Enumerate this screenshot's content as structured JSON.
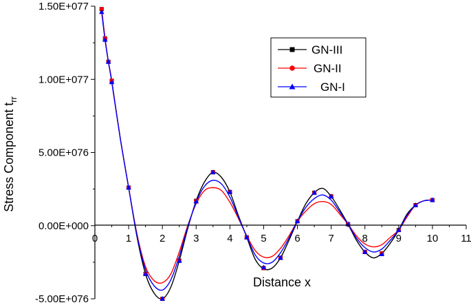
{
  "chart_data": {
    "type": "line",
    "title": "",
    "xlabel": "Distance x",
    "ylabel_main": "Stress Component t",
    "ylabel_sub": "rr",
    "xlim": [
      0,
      11
    ],
    "ylim": [
      -5e+76,
      1.5e+77
    ],
    "x_ticks": [
      0,
      1,
      2,
      3,
      4,
      5,
      6,
      7,
      8,
      9,
      10,
      11
    ],
    "x_tick_labels": [
      "0",
      "1",
      "2",
      "3",
      "4",
      "5",
      "6",
      "7",
      "8",
      "9",
      "10",
      "11"
    ],
    "y_ticks": [
      -5e+76,
      0,
      5e+76,
      1e+77,
      1.5e+77
    ],
    "y_tick_labels": [
      "-5.00E+076",
      "0.00E+000",
      "5.00E+076",
      "1.00E+077",
      "1.50E+077"
    ],
    "legend_position": "top-right",
    "grid": false,
    "series": [
      {
        "name": "GN-III",
        "color": "#000000",
        "marker": "square",
        "x": [
          0.2,
          0.3,
          0.4,
          0.5,
          1.0,
          1.5,
          2.0,
          2.5,
          3.0,
          3.5,
          4.0,
          4.5,
          5.0,
          5.5,
          6.0,
          6.5,
          7.0,
          7.5,
          8.0,
          8.5,
          9.0,
          9.5,
          10.0
        ],
        "values": [
          1.48e+77,
          1.28e+77,
          1.12e+77,
          9.9e+76,
          2.6e+76,
          -3.3e+76,
          -5e+76,
          -2.4e+76,
          1.7e+76,
          3.65e+76,
          2.3e+76,
          -8e+75,
          -2.9e+76,
          -2.2e+76,
          3e+75,
          2.25e+76,
          2e+76,
          1e+75,
          -1.8e+76,
          -1.9e+76,
          -3e+75,
          1.4e+76,
          1.75e+76
        ]
      },
      {
        "name": "GN-II",
        "color": "#ff0000",
        "marker": "circle",
        "x": [
          0.2,
          0.3,
          0.4,
          0.5,
          1.0,
          1.5,
          2.0,
          2.5,
          3.0,
          3.5,
          4.0,
          4.5,
          5.0,
          5.5,
          6.0,
          6.5,
          7.0,
          7.5,
          8.0,
          8.5,
          9.0,
          9.5,
          10.0
        ],
        "values": [
          1.48e+77,
          1.28e+77,
          1.12e+77,
          9.9e+76,
          2.6e+76,
          -3.3e+76,
          -5e+76,
          -2.4e+76,
          1.7e+76,
          3.65e+76,
          2.3e+76,
          -8e+75,
          -2.9e+76,
          -2.2e+76,
          3e+75,
          2.25e+76,
          2e+76,
          1e+75,
          -1.8e+76,
          -1.9e+76,
          -3e+75,
          1.4e+76,
          1.75e+76
        ]
      },
      {
        "name": "GN-I",
        "color": "#0000ff",
        "marker": "triangle",
        "x": [
          0.2,
          0.3,
          0.4,
          0.5,
          1.0,
          1.5,
          2.0,
          2.5,
          3.0,
          3.5,
          4.0,
          4.5,
          5.0,
          5.5,
          6.0,
          6.5,
          7.0,
          7.5,
          8.0,
          8.5,
          9.0,
          9.5,
          10.0
        ],
        "values": [
          1.46e+77,
          1.27e+77,
          1.12e+77,
          9.8e+76,
          2.6e+76,
          -3.3e+76,
          -5e+76,
          -2.4e+76,
          1.65e+76,
          3.65e+76,
          2.3e+76,
          -8e+75,
          -2.85e+76,
          -2.2e+76,
          3e+75,
          2.25e+76,
          2e+76,
          1e+75,
          -1.8e+76,
          -1.95e+76,
          -3e+75,
          1.4e+76,
          1.75e+76
        ]
      }
    ],
    "curves": [
      {
        "name": "GN-III",
        "color": "#000000",
        "x": [
          0.2,
          0.3,
          0.4,
          0.5,
          0.75,
          1.0,
          1.25,
          1.5,
          1.75,
          2.0,
          2.25,
          2.5,
          2.75,
          3.0,
          3.25,
          3.5,
          3.75,
          4.0,
          4.25,
          4.5,
          4.75,
          5.0,
          5.25,
          5.5,
          5.75,
          6.0,
          6.25,
          6.5,
          6.75,
          7.0,
          7.25,
          7.5,
          7.75,
          8.0,
          8.25,
          8.5,
          8.75,
          9.0,
          9.25,
          9.5,
          9.75,
          10.0
        ],
        "values": [
          1.48e+77,
          1.28e+77,
          1.12e+77,
          9.9e+76,
          6e+76,
          2.6e+76,
          -8e+75,
          -3.3e+76,
          -4.6e+76,
          -5e+76,
          -4.2e+76,
          -2.4e+76,
          -2e+75,
          1.7e+76,
          3e+76,
          3.65e+76,
          3.3e+76,
          2.3e+76,
          7e+75,
          -8e+75,
          -2.3e+76,
          -2.95e+76,
          -2.9e+76,
          -2.2e+76,
          -1e+76,
          3e+75,
          1.5e+76,
          2.25e+76,
          2.55e+76,
          2e+76,
          1.1e+76,
          1e+75,
          -1e+76,
          -1.8e+76,
          -2.2e+76,
          -1.9e+76,
          -1.2e+76,
          -3e+75,
          8e+75,
          1.4e+76,
          1.7e+76,
          1.75e+76
        ]
      },
      {
        "name": "GN-II",
        "color": "#ff0000",
        "x": [
          0.2,
          0.3,
          0.4,
          0.5,
          0.75,
          1.0,
          1.25,
          1.5,
          1.75,
          2.0,
          2.25,
          2.5,
          2.75,
          3.0,
          3.25,
          3.5,
          3.75,
          4.0,
          4.25,
          4.5,
          4.75,
          5.0,
          5.25,
          5.5,
          5.75,
          6.0,
          6.25,
          6.5,
          6.75,
          7.0,
          7.25,
          7.5,
          7.75,
          8.0,
          8.25,
          8.5,
          8.75,
          9.0,
          9.25,
          9.5,
          9.75,
          10.0
        ],
        "values": [
          1.48e+77,
          1.28e+77,
          1.12e+77,
          9.9e+76,
          6e+76,
          2.6e+76,
          -6e+75,
          -2.8e+76,
          -3.75e+76,
          -3.9e+76,
          -3.3e+76,
          -1.8e+76,
          0.0,
          1.5e+76,
          2.4e+76,
          2.6e+76,
          2.4e+76,
          1.6e+76,
          5e+75,
          -7e+75,
          -1.7e+76,
          -2.15e+76,
          -2.1e+76,
          -1.55e+76,
          -7e+75,
          3e+75,
          1e+76,
          1.5e+76,
          1.65e+76,
          1.45e+76,
          8e+75,
          1e+75,
          -7e+75,
          -1.25e+76,
          -1.45e+76,
          -1.3e+76,
          -8e+75,
          -3e+75,
          6e+75,
          1.4e+76,
          1.7e+76,
          1.75e+76
        ]
      },
      {
        "name": "GN-I",
        "color": "#0000ff",
        "x": [
          0.2,
          0.3,
          0.4,
          0.5,
          0.75,
          1.0,
          1.25,
          1.5,
          1.75,
          2.0,
          2.25,
          2.5,
          2.75,
          3.0,
          3.25,
          3.5,
          3.75,
          4.0,
          4.25,
          4.5,
          4.75,
          5.0,
          5.25,
          5.5,
          5.75,
          6.0,
          6.25,
          6.5,
          6.75,
          7.0,
          7.25,
          7.5,
          7.75,
          8.0,
          8.25,
          8.5,
          8.75,
          9.0,
          9.25,
          9.5,
          9.75,
          10.0
        ],
        "values": [
          1.46e+77,
          1.27e+77,
          1.12e+77,
          9.8e+76,
          6e+76,
          2.6e+76,
          -7e+75,
          -3e+76,
          -4.1e+76,
          -4.4e+76,
          -3.7e+76,
          -2.1e+76,
          -1e+75,
          1.6e+76,
          2.7e+76,
          3.1e+76,
          2.85e+76,
          1.95e+76,
          6e+75,
          -7.5e+75,
          -2e+76,
          -2.55e+76,
          -2.5e+76,
          -1.85e+76,
          -8.5e+75,
          3e+75,
          1.25e+76,
          1.85e+76,
          2.1e+76,
          1.75e+76,
          9.5e+75,
          1e+75,
          -8.5e+75,
          -1.5e+76,
          -1.8e+76,
          -1.6e+76,
          -1e+76,
          -3e+75,
          7e+75,
          1.4e+76,
          1.7e+76,
          1.75e+76
        ]
      }
    ]
  }
}
